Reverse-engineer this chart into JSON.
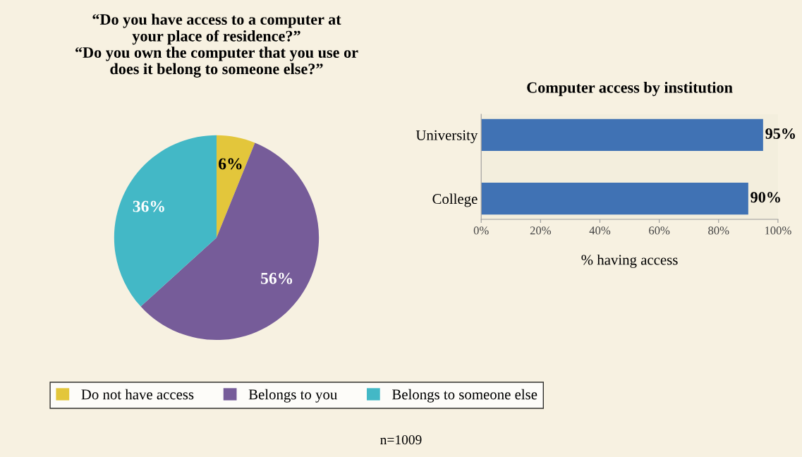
{
  "chart_data": [
    {
      "type": "pie",
      "title": "“Do you have access to a computer at\nyour place of residence?”\n“Do you own the computer that you use or\ndoes it belong to someone else?”",
      "categories": [
        "Do not have access",
        "Belongs to you",
        "Belongs to someone else"
      ],
      "values": [
        6,
        56,
        36
      ],
      "colors": [
        "#e3c63b",
        "#765c99",
        "#43b8c6"
      ],
      "value_labels": [
        "6%",
        "56%",
        "36%"
      ],
      "legend": "bottom",
      "annotations": [
        "n=1009"
      ]
    },
    {
      "type": "bar",
      "orientation": "horizontal",
      "title": "Computer access by institution",
      "categories": [
        "University",
        "College"
      ],
      "values": [
        95,
        90
      ],
      "color": "#4072b4",
      "value_labels": [
        "95%",
        "90%"
      ],
      "xlabel": "% having access",
      "xlim": [
        0,
        100
      ],
      "xticks": [
        {
          "value": 0,
          "label": "0%"
        },
        {
          "value": 20,
          "label": "20%"
        },
        {
          "value": 40,
          "label": "40%"
        },
        {
          "value": 60,
          "label": "60%"
        },
        {
          "value": 80,
          "label": "80%"
        },
        {
          "value": 100,
          "label": "100%"
        }
      ],
      "grid": false
    }
  ]
}
